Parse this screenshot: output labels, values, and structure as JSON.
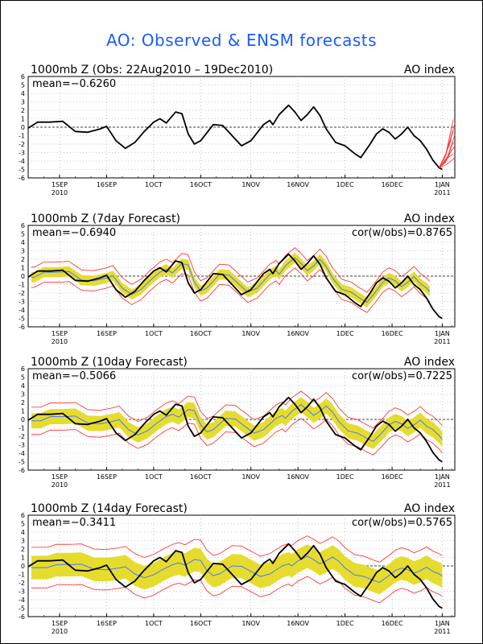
{
  "page": {
    "title": "AO: Observed & ENSM forecasts"
  },
  "chart_data": [
    {
      "type": "line",
      "title": "1000mb Z (Obs: 22Aug2010 – 19Dec2010)",
      "right_title": "AO index",
      "mean_label": "mean=−0.6260",
      "cor_label": "",
      "ylim": [
        -6,
        6
      ],
      "yticks": [
        "-6",
        "-5",
        "-4",
        "-3",
        "-2",
        "-1",
        "0",
        "1",
        "2",
        "3",
        "4",
        "5",
        "6"
      ],
      "x_range": [
        "2010-08-22",
        "2011-01-05"
      ],
      "x_ticks": [
        {
          "date": "2010-09-01",
          "label": "1SEP",
          "sub": "2010"
        },
        {
          "date": "2010-09-16",
          "label": "16SEP",
          "sub": ""
        },
        {
          "date": "2010-10-01",
          "label": "1OCT",
          "sub": ""
        },
        {
          "date": "2010-10-16",
          "label": "16OCT",
          "sub": ""
        },
        {
          "date": "2010-11-01",
          "label": "1NOV",
          "sub": ""
        },
        {
          "date": "2010-11-16",
          "label": "16NOV",
          "sub": ""
        },
        {
          "date": "2010-12-01",
          "label": "1DEC",
          "sub": ""
        },
        {
          "date": "2010-12-16",
          "label": "16DEC",
          "sub": ""
        },
        {
          "date": "2011-01-01",
          "label": "1JAN",
          "sub": "2011"
        }
      ],
      "grid": true,
      "colors": {
        "observed": "#000000",
        "members": "#ff3333",
        "band": "#e6dc2e",
        "ens_mean": "#4a78ff",
        "spread": "#ff2222"
      },
      "observed": [
        [
          "2010-08-22",
          -0.1
        ],
        [
          "2010-08-25",
          0.6
        ],
        [
          "2010-08-29",
          0.6
        ],
        [
          "2010-09-02",
          0.7
        ],
        [
          "2010-09-06",
          -0.5
        ],
        [
          "2010-09-10",
          -0.6
        ],
        [
          "2010-09-14",
          -0.2
        ],
        [
          "2010-09-16",
          0.1
        ],
        [
          "2010-09-19",
          -1.6
        ],
        [
          "2010-09-22",
          -2.5
        ],
        [
          "2010-09-25",
          -1.8
        ],
        [
          "2010-09-28",
          -0.5
        ],
        [
          "2010-10-01",
          0.6
        ],
        [
          "2010-10-03",
          1.0
        ],
        [
          "2010-10-05",
          0.5
        ],
        [
          "2010-10-08",
          1.8
        ],
        [
          "2010-10-10",
          1.6
        ],
        [
          "2010-10-12",
          -0.8
        ],
        [
          "2010-10-14",
          -2.0
        ],
        [
          "2010-10-16",
          -1.6
        ],
        [
          "2010-10-20",
          0.3
        ],
        [
          "2010-10-23",
          0.2
        ],
        [
          "2010-10-26",
          -1.0
        ],
        [
          "2010-10-29",
          -2.2
        ],
        [
          "2010-11-01",
          -1.6
        ],
        [
          "2010-11-05",
          0.3
        ],
        [
          "2010-11-07",
          0.8
        ],
        [
          "2010-11-08",
          0.3
        ],
        [
          "2010-11-10",
          1.5
        ],
        [
          "2010-11-13",
          2.6
        ],
        [
          "2010-11-15",
          1.8
        ],
        [
          "2010-11-17",
          0.8
        ],
        [
          "2010-11-19",
          1.5
        ],
        [
          "2010-11-21",
          2.4
        ],
        [
          "2010-11-23",
          1.4
        ],
        [
          "2010-11-25",
          -0.2
        ],
        [
          "2010-11-28",
          -1.8
        ],
        [
          "2010-12-01",
          -2.2
        ],
        [
          "2010-12-04",
          -3.1
        ],
        [
          "2010-12-06",
          -3.6
        ],
        [
          "2010-12-09",
          -2.0
        ],
        [
          "2010-12-11",
          -0.8
        ],
        [
          "2010-12-13",
          -0.2
        ],
        [
          "2010-12-15",
          -0.6
        ],
        [
          "2010-12-17",
          -1.4
        ],
        [
          "2010-12-19",
          -0.8
        ],
        [
          "2010-12-21",
          0.0
        ],
        [
          "2010-12-23",
          -1.0
        ],
        [
          "2010-12-25",
          -1.6
        ],
        [
          "2010-12-27",
          -2.6
        ],
        [
          "2010-12-29",
          -3.9
        ],
        [
          "2010-12-31",
          -4.8
        ],
        [
          "2011-01-01",
          -5.0
        ]
      ],
      "members": [
        [
          [
            "2011-01-01",
            -5.0
          ],
          [
            "2011-01-02",
            -4.5
          ],
          [
            "2011-01-03",
            -4.0
          ],
          [
            "2011-01-04",
            -3.6
          ],
          [
            "2011-01-05",
            -3.3
          ]
        ]
      ]
    },
    {
      "type": "line",
      "title": "1000mb Z (7day Forecast)",
      "right_title": "AO index",
      "mean_label": "mean=−0.6940",
      "cor_label": "cor(w/obs)=0.8765"
    },
    {
      "type": "line",
      "title": "1000mb Z (10day Forecast)",
      "right_title": "AO index",
      "mean_label": "mean=−0.5066",
      "cor_label": "cor(w/obs)=0.7225"
    },
    {
      "type": "line",
      "title": "1000mb Z (14day Forecast)",
      "right_title": "AO index",
      "mean_label": "mean=−0.3411",
      "cor_label": "cor(w/obs)=0.5765"
    }
  ]
}
